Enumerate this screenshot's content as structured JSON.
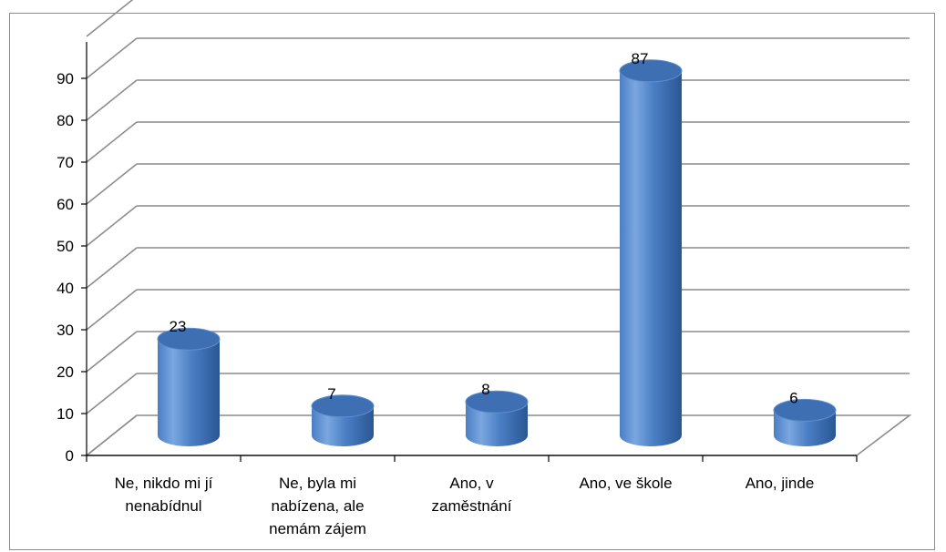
{
  "chart_data": {
    "type": "bar",
    "style": "3d-cylinder",
    "categories": [
      [
        "Ne, nikdo mi jí",
        "nenabídnul"
      ],
      [
        "Ne, byla mi",
        "nabízena, ale",
        "nemám zájem"
      ],
      [
        "Ano, v",
        "zaměstnání"
      ],
      [
        "Ano, ve škole"
      ],
      [
        "Ano, jinde"
      ]
    ],
    "values": [
      23,
      7,
      8,
      87,
      6
    ],
    "data_labels": [
      "23",
      "7",
      "8",
      "87",
      "6"
    ],
    "y_ticks": [
      "0",
      "10",
      "20",
      "30",
      "40",
      "50",
      "60",
      "70",
      "80",
      "90"
    ],
    "ylim": [
      0,
      100
    ],
    "grid": true,
    "legend": "none",
    "title": "",
    "xlabel": "",
    "ylabel": "",
    "colors": {
      "bar_light": "#7aa7e0",
      "bar_mid": "#4a7ec4",
      "bar_dark": "#2a5693",
      "bar_top": "#3d6fb2",
      "grid": "#8c8c8c",
      "axis": "#000000"
    }
  }
}
